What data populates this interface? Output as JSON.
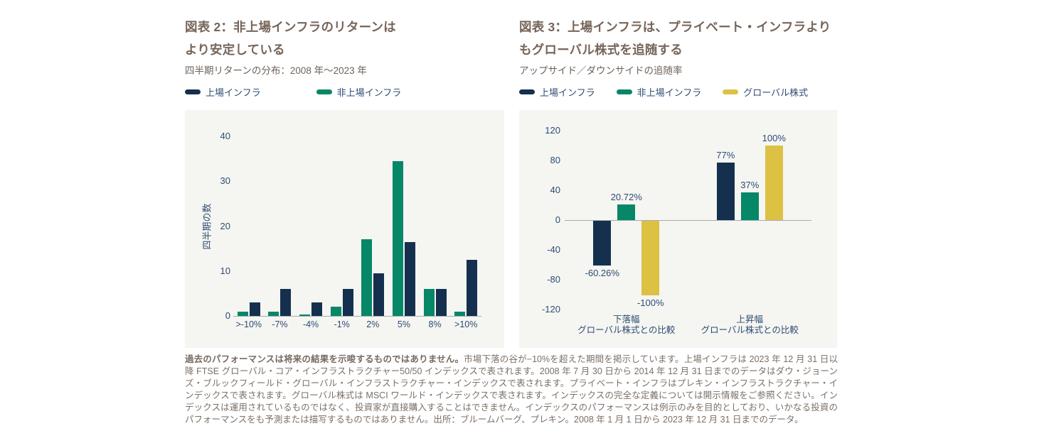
{
  "colors": {
    "navy": "#14304e",
    "green": "#068767",
    "yellow": "#dcc143",
    "title_brown": "#76655a",
    "body_text": "#7b6f66",
    "axis_text": "#2d4c72",
    "panel_bg": "#f5f5f2"
  },
  "chart_data": [
    {
      "type": "bar",
      "figure_label_lines": [
        "図表 2：非上場インフラのリターンは",
        "より安定している"
      ],
      "subtitle": "四半期リターンの分布：2008 年〜2023 年",
      "legend": [
        {
          "name": "上場インフラ",
          "slug": "listed-infra",
          "color": "#14304e"
        },
        {
          "name": "非上場インフラ",
          "slug": "private-infra",
          "color": "#068767"
        }
      ],
      "categories": [
        ">-10%",
        "-7%",
        "-4%",
        "-1%",
        "2%",
        "5%",
        "8%",
        ">10%"
      ],
      "series": [
        {
          "name": "非上場インフラ",
          "slug": "private-infra",
          "color": "#068767",
          "values": [
            1,
            1,
            0.3,
            2,
            17,
            34.5,
            6,
            1
          ]
        },
        {
          "name": "上場インフラ",
          "slug": "listed-infra",
          "color": "#14304e",
          "values": [
            3,
            6,
            3,
            6,
            9.5,
            16.5,
            6,
            12.5
          ]
        }
      ],
      "ylabel": "四半期の数",
      "xlabel": "",
      "yticks": [
        40,
        30,
        20,
        10,
        0
      ],
      "ylim": [
        0,
        40
      ],
      "grid": false,
      "legend_position": "top"
    },
    {
      "type": "bar",
      "figure_label_lines": [
        "図表 3：上場インフラは、プライベート・インフラより",
        "もグローバル株式を追随する"
      ],
      "subtitle": "アップサイド／ダウンサイドの追随率",
      "legend": [
        {
          "name": "上場インフラ",
          "slug": "listed-infra",
          "color": "#14304e"
        },
        {
          "name": "非上場インフラ",
          "slug": "private-infra",
          "color": "#068767"
        },
        {
          "name": "グローバル株式",
          "slug": "global-equities",
          "color": "#dcc143"
        }
      ],
      "categories": [
        [
          "下落幅",
          "グローバル株式との比較"
        ],
        [
          "上昇幅",
          "グローバル株式との比較"
        ]
      ],
      "series": [
        {
          "name": "上場インフラ",
          "slug": "listed-infra",
          "color": "#14304e",
          "values": [
            -60.26,
            77
          ],
          "data_labels": [
            "-60.26%",
            "77%"
          ]
        },
        {
          "name": "非上場インフラ",
          "slug": "private-infra",
          "color": "#068767",
          "values": [
            20.72,
            37
          ],
          "data_labels": [
            "20.72%",
            "37%"
          ]
        },
        {
          "name": "グローバル株式",
          "slug": "global-equities",
          "color": "#dcc143",
          "values": [
            -100,
            100
          ],
          "data_labels": [
            "-100%",
            "100%"
          ]
        }
      ],
      "ylabel": "",
      "xlabel": "",
      "yticks": [
        120,
        80,
        40,
        0,
        -40,
        -80,
        -120
      ],
      "ylim": [
        -120,
        120
      ],
      "grid": false,
      "legend_position": "top"
    }
  ],
  "footnote": {
    "lead_bold": "過去のパフォーマンスは将来の結果を示唆するものではありません。",
    "body": "市場下落の谷が−10%を超えた期間を掲示しています。上場インフラは 2023 年 12 月 31 日以降 FTSE グローバル・コア・インフラストラクチャー50/50 インデックスで表されます。2008 年 7 月 30 日から 2014 年 12 月 31 日までのデータはダウ・ジョーンズ・ブルックフィールド・グローバル・インフラストラクチャー・インデックスで表されます。プライベート・インフラはプレキン・インフラストラクチャー・インデックスで表されます。グローバル株式は MSCI ワールド・インデックスで表されます。インデックスの完全な定義については開示情報をご参照ください。インデックスは運用されているものではなく、投資家が直接購入することはできません。インデックスのパフォーマンスは例示のみを目的としており、いかなる投資のパフォーマンスをも予測または描写するものではありません。出所：ブルームバーグ、プレキン。2008 年 1 月 1 日から 2023 年 12 月 31 日までのデータ。"
  }
}
